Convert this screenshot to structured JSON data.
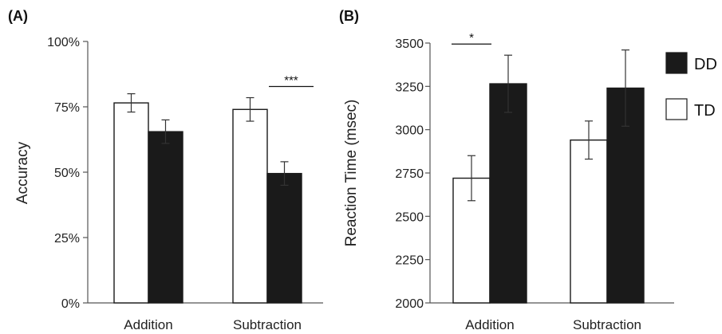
{
  "chart_data": [
    {
      "panel": "(A)",
      "type": "bar",
      "ylabel": "Accuracy",
      "categories": [
        "Addition",
        "Subtraction"
      ],
      "ylim": [
        0,
        100
      ],
      "yticks": [
        "0%",
        "25%",
        "50%",
        "75%",
        "100%"
      ],
      "ytick_values": [
        0,
        25,
        50,
        75,
        100
      ],
      "series": [
        {
          "name": "TD",
          "color": "#ffffff",
          "values": [
            76.5,
            74
          ],
          "errors": [
            3.5,
            4.5
          ]
        },
        {
          "name": "DD",
          "color": "#1a1a1a",
          "values": [
            65.5,
            49.5
          ],
          "errors": [
            4.5,
            4.5
          ]
        }
      ],
      "significance": [
        {
          "category": "Subtraction",
          "label": "***"
        }
      ]
    },
    {
      "panel": "(B)",
      "type": "bar",
      "ylabel": "Reaction Time (msec)",
      "categories": [
        "Addition",
        "Subtraction"
      ],
      "ylim": [
        2000,
        3500
      ],
      "yticks": [
        "2000",
        "2250",
        "2500",
        "2750",
        "3000",
        "3250",
        "3500"
      ],
      "ytick_values": [
        2000,
        2250,
        2500,
        2750,
        3000,
        3250,
        3500
      ],
      "series": [
        {
          "name": "TD",
          "color": "#ffffff",
          "values": [
            2720,
            2940
          ],
          "errors": [
            130,
            110
          ]
        },
        {
          "name": "DD",
          "color": "#1a1a1a",
          "values": [
            3265,
            3240
          ],
          "errors": [
            165,
            220
          ]
        }
      ],
      "significance": [
        {
          "category": "Addition",
          "label": "*"
        }
      ]
    }
  ],
  "legend": [
    {
      "label": "DD",
      "color": "#1a1a1a"
    },
    {
      "label": "TD",
      "color": "#ffffff"
    }
  ]
}
